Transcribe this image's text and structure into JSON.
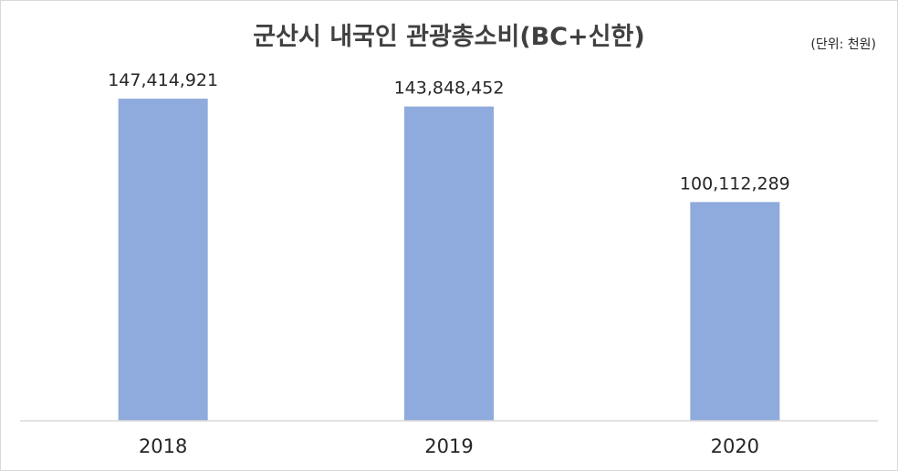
{
  "chart_data": {
    "type": "bar",
    "title": "군산시 내국인 관광총소비(BC+신한)",
    "unit_note": "(단위: 천원)",
    "categories": [
      "2018",
      "2019",
      "2020"
    ],
    "values": [
      147414921,
      143848452,
      100112289
    ],
    "data_labels": [
      "147,414,921",
      "143,848,452",
      "100,112,289"
    ],
    "ylim": [
      0,
      160000000
    ],
    "grid": false,
    "legend": "none",
    "bar_color": "#8faadc",
    "axis_color": "#d9d9d9"
  }
}
